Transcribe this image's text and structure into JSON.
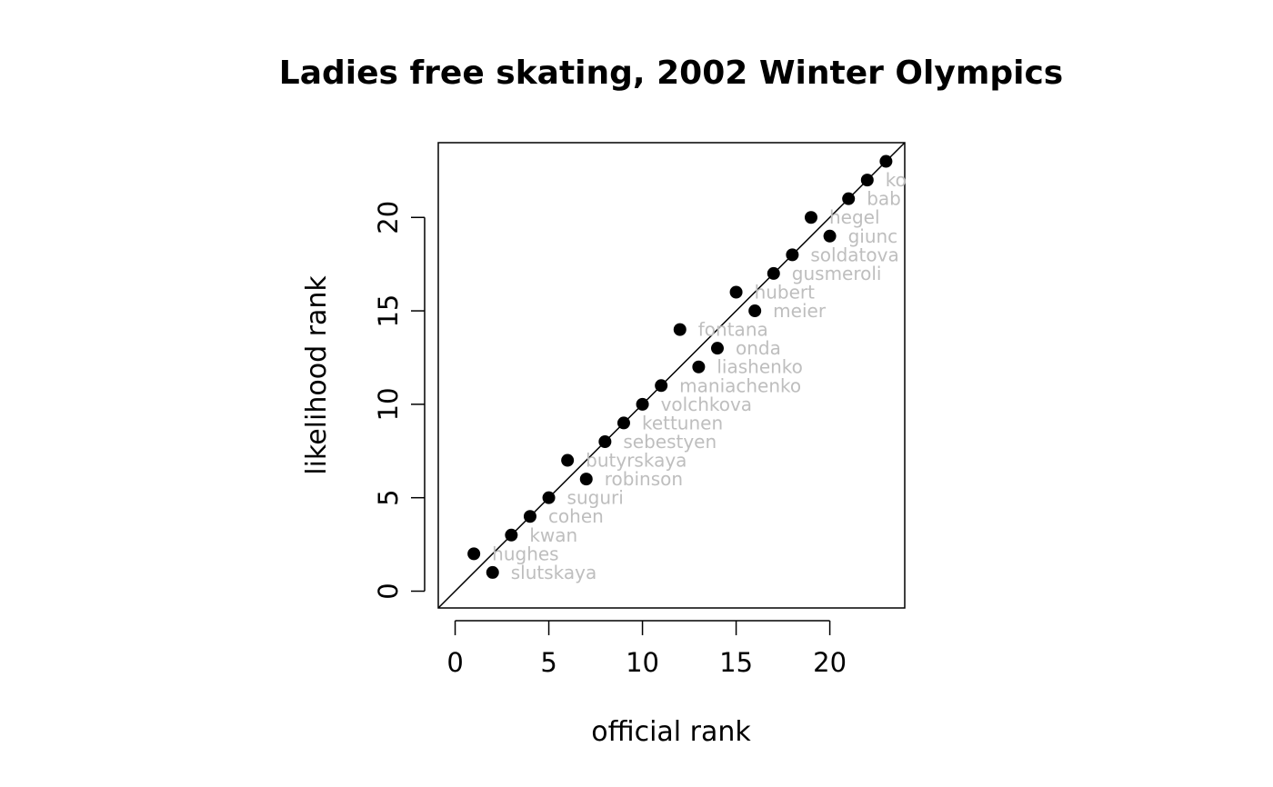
{
  "chart_data": {
    "type": "scatter",
    "title": "Ladies free skating, 2002 Winter Olympics",
    "xlabel": "official rank",
    "ylabel": "likelihood rank",
    "xlim": [
      -0.9,
      24
    ],
    "ylim": [
      -0.9,
      24
    ],
    "xticks": [
      0,
      5,
      10,
      15,
      20
    ],
    "yticks": [
      0,
      5,
      10,
      15,
      20
    ],
    "reference_line": "y = x",
    "grid": false,
    "point_color": "#000000",
    "label_color": "#bebebe",
    "points": [
      {
        "x": 1,
        "y": 2,
        "label": "hughes"
      },
      {
        "x": 2,
        "y": 1,
        "label": "slutskaya"
      },
      {
        "x": 3,
        "y": 3,
        "label": "kwan"
      },
      {
        "x": 4,
        "y": 4,
        "label": "cohen"
      },
      {
        "x": 5,
        "y": 5,
        "label": "suguri"
      },
      {
        "x": 6,
        "y": 7,
        "label": "butyrskaya"
      },
      {
        "x": 7,
        "y": 6,
        "label": "robinson"
      },
      {
        "x": 8,
        "y": 8,
        "label": "sebestyen"
      },
      {
        "x": 9,
        "y": 9,
        "label": "kettunen"
      },
      {
        "x": 10,
        "y": 10,
        "label": "volchkova"
      },
      {
        "x": 11,
        "y": 11,
        "label": "maniachenko"
      },
      {
        "x": 12,
        "y": 14,
        "label": "fontana"
      },
      {
        "x": 13,
        "y": 12,
        "label": "liashenko"
      },
      {
        "x": 14,
        "y": 13,
        "label": "onda"
      },
      {
        "x": 15,
        "y": 16,
        "label": "hubert"
      },
      {
        "x": 16,
        "y": 15,
        "label": "meier"
      },
      {
        "x": 17,
        "y": 17,
        "label": "gusmeroli"
      },
      {
        "x": 18,
        "y": 18,
        "label": "soldatova"
      },
      {
        "x": 19,
        "y": 20,
        "label": "hegel"
      },
      {
        "x": 20,
        "y": 19,
        "label": "giunc"
      },
      {
        "x": 21,
        "y": 21,
        "label": "bab"
      },
      {
        "x": 22,
        "y": 22,
        "label": "ko"
      },
      {
        "x": 23,
        "y": 23,
        "label": ""
      }
    ]
  }
}
